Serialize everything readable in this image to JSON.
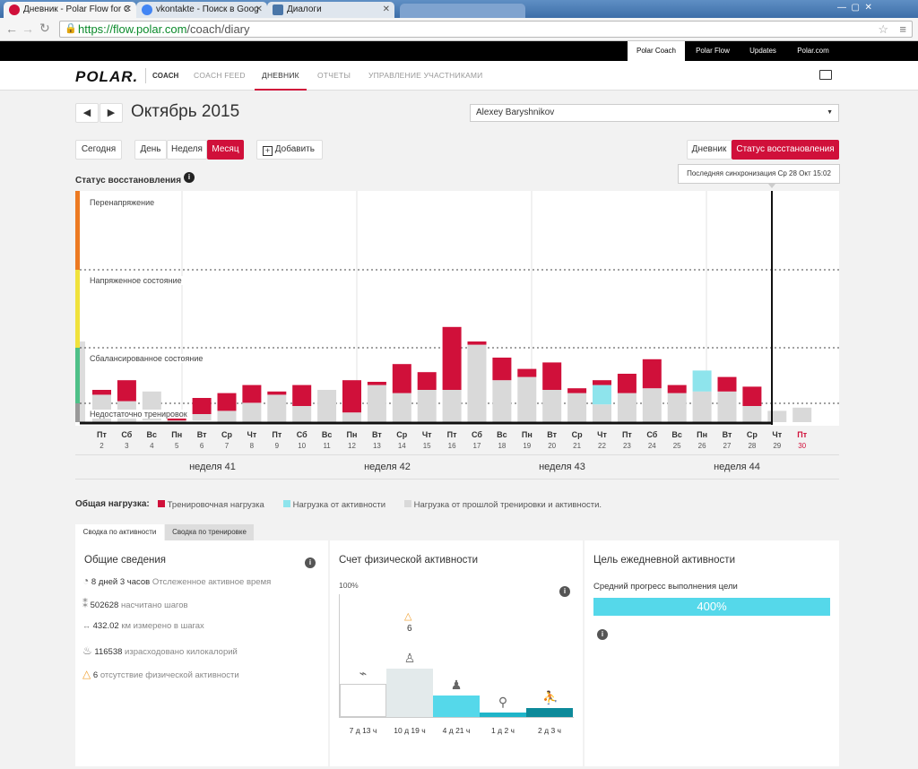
{
  "browser": {
    "tabs": [
      {
        "label": "Дневник - Polar Flow for C",
        "active": true
      },
      {
        "label": "vkontakte - Поиск в Goog"
      },
      {
        "label": "Диалоги"
      }
    ],
    "url_host": "https://flow.polar.com",
    "url_path": "/coach/diary"
  },
  "topbar": {
    "items": [
      "Polar Coach",
      "Polar Flow",
      "Updates",
      "Polar.com"
    ]
  },
  "nav": {
    "logo": "POLAR.",
    "coach": "COACH",
    "items": [
      "COACH FEED",
      "ДНЕВНИК",
      "ОТЧЕТЫ",
      "УПРАВЛЕНИЕ УЧАСТНИКАМИ"
    ]
  },
  "period": {
    "title": "Октябрь 2015",
    "athlete": "Alexey Baryshnikov"
  },
  "toolbar": {
    "today": "Сегодня",
    "day": "День",
    "week": "Неделя",
    "month": "Месяц",
    "add": "Добавить",
    "view_diary": "Дневник",
    "view_recovery": "Статус восстановления"
  },
  "sync_tooltip": "Последняя синхронизация Ср 28 Окт 15:02",
  "chart_title": "Статус восстановления",
  "chart_data": {
    "type": "bar",
    "zones": [
      "Перенапряжение",
      "Напряженное состояние",
      "Сбалансированное состояние",
      "Недостаточно тренировок"
    ],
    "days": [
      {
        "d": "Пт",
        "n": "2"
      },
      {
        "d": "Сб",
        "n": "3"
      },
      {
        "d": "Вс",
        "n": "4"
      },
      {
        "d": "Пн",
        "n": "5"
      },
      {
        "d": "Вт",
        "n": "6"
      },
      {
        "d": "Ср",
        "n": "7"
      },
      {
        "d": "Чт",
        "n": "8"
      },
      {
        "d": "Пт",
        "n": "9"
      },
      {
        "d": "Сб",
        "n": "10"
      },
      {
        "d": "Вс",
        "n": "11"
      },
      {
        "d": "Пн",
        "n": "12"
      },
      {
        "d": "Вт",
        "n": "13"
      },
      {
        "d": "Ср",
        "n": "14"
      },
      {
        "d": "Чт",
        "n": "15"
      },
      {
        "d": "Пт",
        "n": "16"
      },
      {
        "d": "Сб",
        "n": "17"
      },
      {
        "d": "Вс",
        "n": "18"
      },
      {
        "d": "Пн",
        "n": "19"
      },
      {
        "d": "Вт",
        "n": "20"
      },
      {
        "d": "Ср",
        "n": "21"
      },
      {
        "d": "Чт",
        "n": "22"
      },
      {
        "d": "Пт",
        "n": "23"
      },
      {
        "d": "Сб",
        "n": "24"
      },
      {
        "d": "Вс",
        "n": "25"
      },
      {
        "d": "Пн",
        "n": "26"
      },
      {
        "d": "Вт",
        "n": "27"
      },
      {
        "d": "Ср",
        "n": "28"
      },
      {
        "d": "Чт",
        "n": "29"
      },
      {
        "d": "Пт",
        "n": "30"
      }
    ],
    "series": [
      {
        "name": "Нагрузка от прошлой тренировки и активности",
        "values": [
          17,
          13,
          18,
          1,
          4,
          7,
          12,
          17,
          10,
          20,
          6,
          23,
          18,
          20,
          20,
          48,
          26,
          28,
          20,
          18,
          11,
          18,
          21,
          18,
          19,
          19,
          10,
          7,
          9
        ]
      },
      {
        "name": "Тренировочная нагрузка",
        "values": [
          3,
          13,
          0,
          2,
          10,
          11,
          11,
          2,
          13,
          0,
          20,
          2,
          18,
          11,
          39,
          2,
          14,
          5,
          17,
          3,
          3,
          12,
          18,
          5,
          0,
          9,
          12,
          0,
          0
        ]
      },
      {
        "name": "Нагрузка от активности",
        "values": [
          0,
          0,
          0,
          0,
          0,
          0,
          0,
          0,
          0,
          0,
          0,
          0,
          0,
          0,
          0,
          0,
          0,
          0,
          0,
          0,
          12,
          0,
          0,
          0,
          13,
          0,
          0,
          0,
          0
        ]
      }
    ],
    "base": [
      0,
      0,
      1,
      0,
      1,
      0,
      0,
      0,
      0,
      0,
      0,
      0,
      0,
      0,
      0,
      0,
      0,
      0,
      0,
      0,
      0,
      0,
      0,
      0,
      0,
      0,
      0,
      0,
      0
    ],
    "future_days": [
      27,
      28
    ],
    "weeks": [
      "неделя 41",
      "неделя 42",
      "неделя 43",
      "неделя 44"
    ]
  },
  "legend": {
    "label": "Общая нагрузка:",
    "items": [
      {
        "label": "Тренировочная нагрузка",
        "color": "#d0103a"
      },
      {
        "label": "Нагрузка от активности",
        "color": "#8ee4ec"
      },
      {
        "label": "Нагрузка от прошлой тренировки и активности.",
        "color": "#d9d9d9"
      }
    ]
  },
  "subtabs": [
    "Сводка по активности",
    "Сводка по тренировке"
  ],
  "summary": {
    "title": "Общие сведения",
    "rows": [
      {
        "value": "8 дней 3 часов",
        "label": "Отслеженное активное время",
        "icon": "clock-icon"
      },
      {
        "value": "502628",
        "label": "насчитано шагов",
        "icon": "footsteps-icon"
      },
      {
        "value": "432.02",
        "label": "км измерено в шагах",
        "icon": "distance-icon"
      },
      {
        "value": "116538",
        "label": "израсходовано килокалорий",
        "icon": "flame-icon"
      },
      {
        "value": "6",
        "label": "отсутствие физической активности",
        "icon": "warning-icon"
      }
    ]
  },
  "activity": {
    "title": "Счет физической активности",
    "pct": "100%",
    "inactivity_count": "6",
    "bars": [
      {
        "label": "7 д 13 ч",
        "value": 37,
        "color": "#ffffff",
        "icon": "lying-icon"
      },
      {
        "label": "10 д 19 ч",
        "value": 54,
        "color": "#e3eaeb",
        "icon": "sitting-icon"
      },
      {
        "label": "4 д 21 ч",
        "value": 24,
        "color": "#55d8ea",
        "icon": "standing-icon"
      },
      {
        "label": "1 д 2 ч",
        "value": 5,
        "color": "#1fb5c9",
        "icon": "walking-icon"
      },
      {
        "label": "2 д 3 ч",
        "value": 10,
        "color": "#0d8a9a",
        "icon": "running-icon"
      }
    ]
  },
  "goal": {
    "title": "Цель ежедневной активности",
    "subtitle": "Средний прогресс выполнения цели",
    "value": "400%"
  }
}
